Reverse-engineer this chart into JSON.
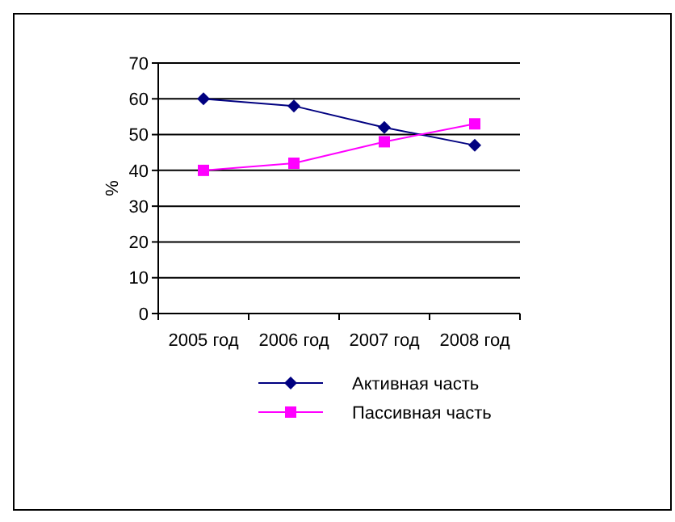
{
  "chart_data": {
    "type": "line",
    "ylabel": "%",
    "categories": [
      "2005 год",
      "2006 год",
      "2007 год",
      "2008 год"
    ],
    "series": [
      {
        "name": "Активная часть",
        "color": "#000080",
        "marker": "diamond",
        "values": [
          60,
          58,
          52,
          47
        ]
      },
      {
        "name": "Пассивная часть",
        "color": "#ff00ff",
        "marker": "square",
        "values": [
          40,
          42,
          48,
          53
        ]
      }
    ],
    "ylim": [
      0,
      70
    ],
    "yticks": [
      0,
      10,
      20,
      30,
      40,
      50,
      60,
      70
    ],
    "grid": "y",
    "legend": "bottom"
  }
}
